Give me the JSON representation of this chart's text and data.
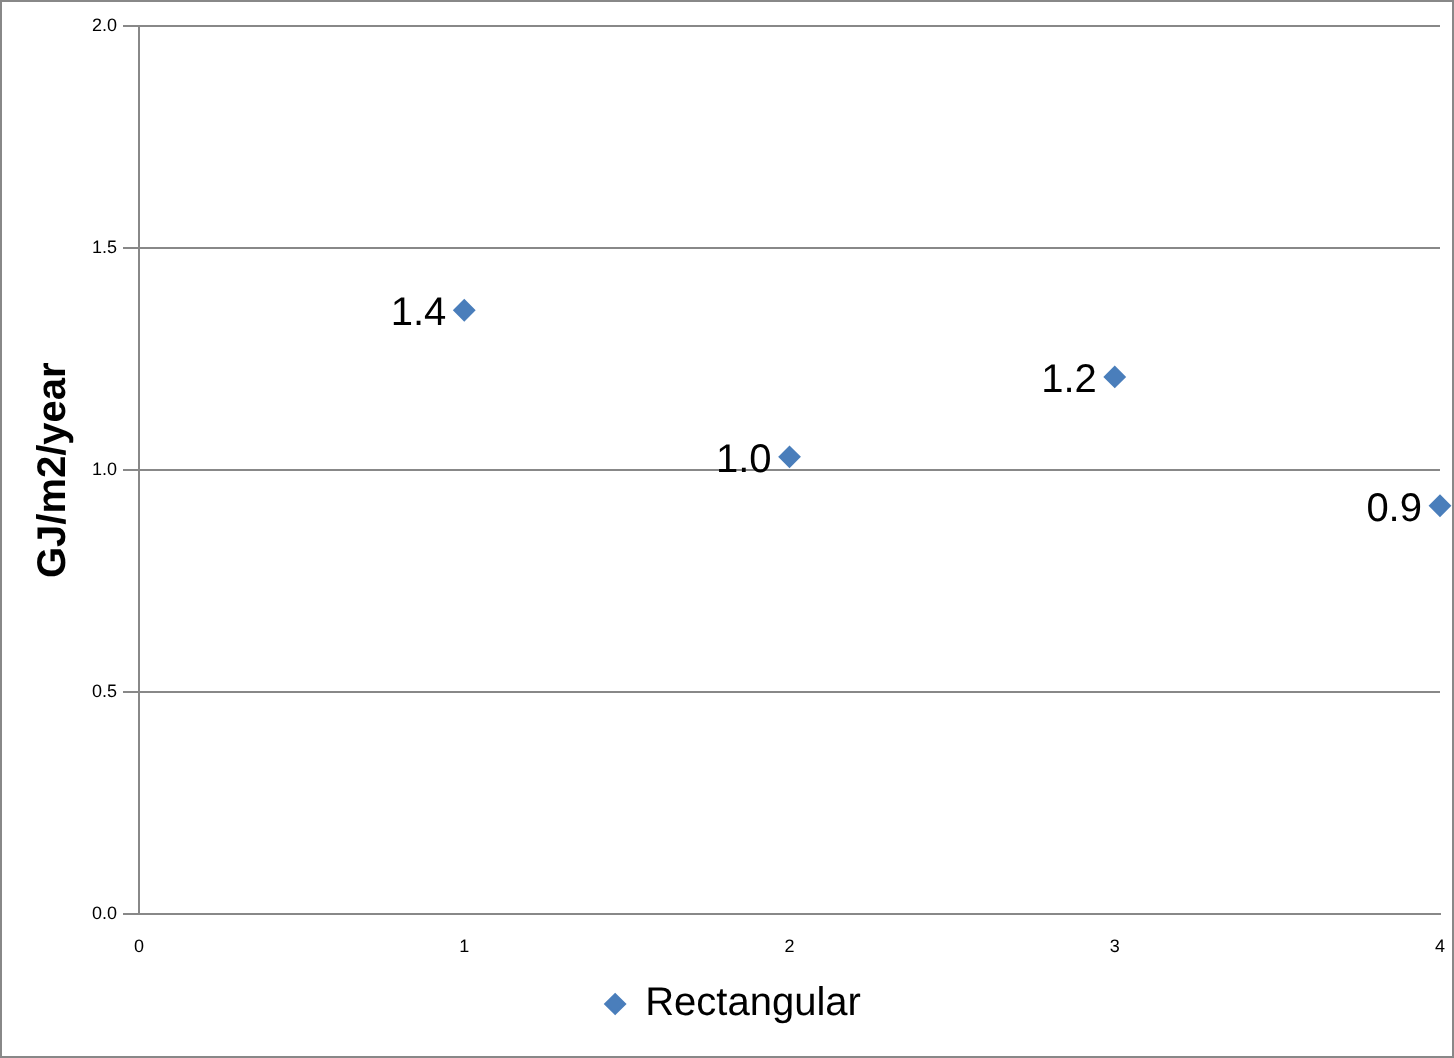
{
  "chart_data": {
    "type": "scatter",
    "ylabel": "GJ/m2/year",
    "x": [
      1,
      2,
      3,
      4
    ],
    "series": [
      {
        "name": "Rectangular",
        "color": "#4a7ebb",
        "values": [
          1.36,
          1.03,
          1.21,
          0.92
        ],
        "value_labels": [
          "1.4",
          "1.0",
          "1.2",
          "0.9"
        ]
      }
    ],
    "xlim": [
      0,
      4
    ],
    "xticks": [
      0,
      1,
      2,
      3,
      4
    ],
    "ylim": [
      0,
      2
    ],
    "yticks": [
      {
        "value": 0,
        "label": "0.0"
      },
      {
        "value": 0.5,
        "label": "0.5"
      },
      {
        "value": 1,
        "label": "1.0"
      },
      {
        "value": 1.5,
        "label": "1.5"
      },
      {
        "value": 2,
        "label": "2.0"
      }
    ],
    "grid": "y",
    "legend": "bottom",
    "marker": "diamond"
  }
}
